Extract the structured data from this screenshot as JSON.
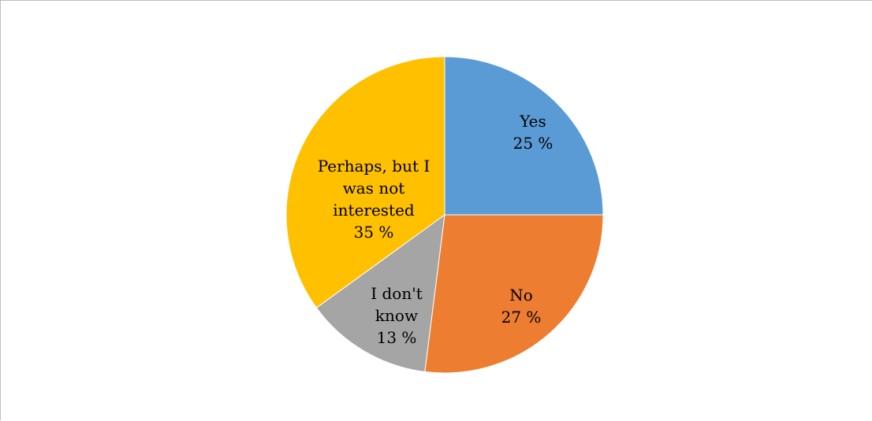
{
  "chart_data": {
    "type": "pie",
    "title": "",
    "categories": [
      "Yes",
      "No",
      "I don't know",
      "Perhaps, but I was not interested"
    ],
    "values": [
      25,
      27,
      13,
      35
    ],
    "value_labels": [
      "25 %",
      "27 %",
      "13 %",
      "35 %"
    ],
    "label_lines": [
      [
        "Yes"
      ],
      [
        "No"
      ],
      [
        "I don't",
        "know"
      ],
      [
        "Perhaps, but I",
        "was not",
        "interested"
      ]
    ],
    "colors": [
      "#5b9bd5",
      "#ed7d31",
      "#a5a5a5",
      "#ffc000"
    ],
    "start_angle_deg": 0,
    "direction": "clockwise",
    "legend": "none",
    "data_labels": "inside"
  }
}
